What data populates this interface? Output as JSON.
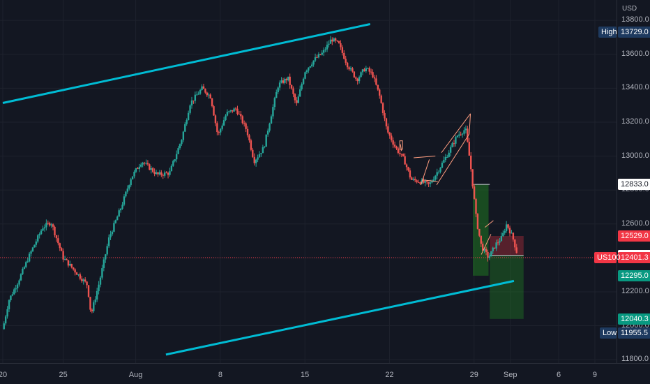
{
  "chart_data": {
    "type": "candlestick",
    "currency": "USD",
    "y_ticks": [
      13800,
      13600,
      13400,
      13200,
      13000,
      12800,
      12600,
      12400,
      12200,
      12000,
      11800
    ],
    "y_tick_labels": [
      "13800.0",
      "13600.0",
      "13400.0",
      "13200.0",
      "13000.0",
      "12800.0",
      "12600.0",
      "12400.0",
      "12200.0",
      "12000.0",
      "11800.0"
    ],
    "x_tick_labels": [
      "20",
      "25",
      "Aug",
      "8",
      "15",
      "22",
      "29",
      "Sep",
      "6",
      "9"
    ],
    "x_tick_days": [
      0,
      5,
      11,
      18,
      25,
      32,
      39,
      42,
      46,
      49
    ],
    "ylim": [
      11780,
      13920
    ],
    "xlim": [
      0,
      50
    ],
    "high": {
      "label": "High",
      "value": "13729.0"
    },
    "low": {
      "label": "Low",
      "value": "11955.5"
    },
    "symbol": {
      "label": "US100",
      "value": "12401.3"
    },
    "markers": [
      {
        "value": "12833.1",
        "kind": "stop"
      },
      {
        "value": "12833.0",
        "kind": "entry"
      },
      {
        "value": "12529.0",
        "kind": "target1"
      },
      {
        "value": "12415.5",
        "kind": "price"
      },
      {
        "value": "12295.0",
        "kind": "tp"
      },
      {
        "value": "12040.3",
        "kind": "tp2"
      }
    ],
    "channel_upper": [
      [
        0,
        13313
      ],
      [
        30.4,
        13778
      ]
    ],
    "channel_lower": [
      [
        13.5,
        11830
      ],
      [
        42.3,
        12264
      ]
    ],
    "key_prices": [
      [
        0,
        11980
      ],
      [
        0.5,
        12150
      ],
      [
        1.2,
        12250
      ],
      [
        2.3,
        12430
      ],
      [
        3.3,
        12580
      ],
      [
        4.0,
        12610
      ],
      [
        5.0,
        12400
      ],
      [
        6.0,
        12320
      ],
      [
        7.0,
        12240
      ],
      [
        7.3,
        12065
      ],
      [
        8.0,
        12260
      ],
      [
        8.8,
        12520
      ],
      [
        9.8,
        12700
      ],
      [
        10.6,
        12870
      ],
      [
        11.5,
        12970
      ],
      [
        12.8,
        12890
      ],
      [
        13.8,
        12900
      ],
      [
        14.8,
        13100
      ],
      [
        15.5,
        13310
      ],
      [
        16.5,
        13400
      ],
      [
        17.2,
        13350
      ],
      [
        17.8,
        13120
      ],
      [
        18.5,
        13250
      ],
      [
        19.3,
        13280
      ],
      [
        20.2,
        13150
      ],
      [
        20.8,
        12970
      ],
      [
        21.6,
        13050
      ],
      [
        22.2,
        13240
      ],
      [
        22.8,
        13420
      ],
      [
        23.6,
        13460
      ],
      [
        24.3,
        13300
      ],
      [
        25.0,
        13500
      ],
      [
        25.8,
        13570
      ],
      [
        26.5,
        13610
      ],
      [
        27.2,
        13690
      ],
      [
        27.8,
        13660
      ],
      [
        28.5,
        13540
      ],
      [
        29.3,
        13450
      ],
      [
        30.0,
        13520
      ],
      [
        30.6,
        13480
      ],
      [
        31.2,
        13350
      ],
      [
        31.8,
        13150
      ],
      [
        32.5,
        13050
      ],
      [
        33.2,
        12980
      ],
      [
        33.8,
        12860
      ],
      [
        34.6,
        12850
      ],
      [
        35.3,
        12830
      ],
      [
        35.9,
        12900
      ],
      [
        36.8,
        13010
      ],
      [
        37.6,
        13120
      ],
      [
        38.3,
        13160
      ],
      [
        38.7,
        12950
      ],
      [
        38.9,
        12820
      ],
      [
        39.2,
        12620
      ],
      [
        39.6,
        12470
      ],
      [
        40.2,
        12400
      ],
      [
        40.8,
        12480
      ],
      [
        41.3,
        12520
      ],
      [
        41.7,
        12600
      ],
      [
        42.2,
        12520
      ],
      [
        42.6,
        12415
      ]
    ]
  }
}
